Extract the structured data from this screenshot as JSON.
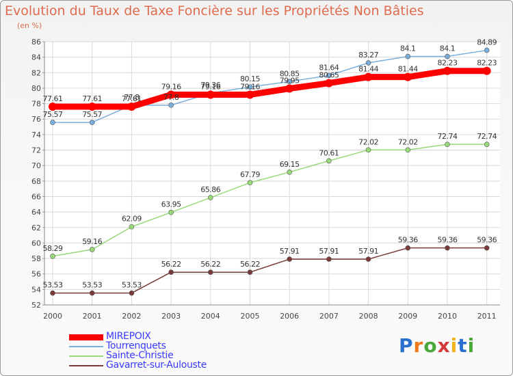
{
  "chart_data": {
    "type": "line",
    "title": "Evolution du Taux de Taxe Foncière sur les Propriétés Non Bâties",
    "subtitle": "(en %)",
    "x": [
      "2000",
      "2001",
      "2002",
      "2003",
      "2004",
      "2005",
      "2006",
      "2007",
      "2008",
      "2009",
      "2010",
      "2011"
    ],
    "ylim": [
      52,
      86
    ],
    "yticks": [
      "52",
      "54",
      "56",
      "58",
      "60",
      "62",
      "64",
      "66",
      "68",
      "70",
      "72",
      "74",
      "76",
      "78",
      "80",
      "82",
      "84",
      "86"
    ],
    "grid": true,
    "legend_position": "bottom-left",
    "series": [
      {
        "name": "MIREPOIX",
        "color": "#ff0000",
        "values": [
          77.61,
          77.61,
          77.61,
          79.16,
          79.16,
          79.16,
          79.95,
          80.65,
          81.44,
          81.44,
          82.23,
          82.23
        ],
        "labels": [
          "77.61",
          "77.61",
          "77.61",
          "79.16",
          "79.16",
          "79.16",
          "79.95",
          "80.65",
          "81.44",
          "81.44",
          "82.23",
          "82.23"
        ]
      },
      {
        "name": "Tourrenquets",
        "color": "#7aaedc",
        "values": [
          75.57,
          75.57,
          77.8,
          77.8,
          79.36,
          80.15,
          80.85,
          81.64,
          83.27,
          84.1,
          84.1,
          84.89
        ],
        "labels": [
          "75.57",
          "75.57",
          "77.8",
          "77.8",
          "79.36",
          "80.15",
          "80.85",
          "81.64",
          "83.27",
          "84.1",
          "84.1",
          "84.89"
        ]
      },
      {
        "name": "Sainte-Christie",
        "color": "#99d97a",
        "values": [
          58.29,
          59.16,
          62.09,
          63.95,
          65.86,
          67.79,
          69.15,
          70.61,
          72.02,
          72.02,
          72.74,
          72.74
        ],
        "labels": [
          "58.29",
          "59.16",
          "62.09",
          "63.95",
          "65.86",
          "67.79",
          "69.15",
          "70.61",
          "72.02",
          "72.02",
          "72.74",
          "72.74"
        ]
      },
      {
        "name": "Gavarret-sur-Aulouste",
        "color": "#7a3a3a",
        "values": [
          53.53,
          53.53,
          53.53,
          56.22,
          56.22,
          56.22,
          57.91,
          57.91,
          57.91,
          59.36,
          59.36,
          59.36
        ],
        "labels": [
          "53.53",
          "53.53",
          "53.53",
          "56.22",
          "56.22",
          "56.22",
          "57.91",
          "57.91",
          "57.91",
          "59.36",
          "59.36",
          "59.36"
        ]
      }
    ]
  },
  "logo": {
    "text": "Proxiti"
  }
}
